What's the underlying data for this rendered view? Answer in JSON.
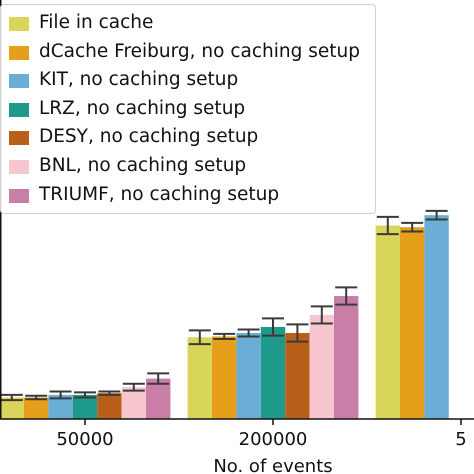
{
  "chart_data": {
    "type": "bar",
    "xlabel": "No. of events",
    "categories": [
      "50000",
      "200000",
      "5"
    ],
    "series": [
      {
        "name": "File in cache",
        "color": "#d9d45a",
        "values": [
          2.5,
          9.5,
          22.5
        ],
        "errors": [
          0.3,
          0.8,
          1.0
        ]
      },
      {
        "name": "dCache Freiburg, no caching setup",
        "color": "#e69f1a",
        "values": [
          2.5,
          9.6,
          22.3
        ],
        "errors": [
          0.2,
          0.3,
          0.5
        ]
      },
      {
        "name": "KIT, no caching setup",
        "color": "#6aaed6",
        "values": [
          2.8,
          10.0,
          23.7
        ],
        "errors": [
          0.4,
          0.4,
          0.5
        ]
      },
      {
        "name": "LRZ, no caching setup",
        "color": "#1f9a8a",
        "values": [
          2.8,
          10.7,
          null
        ],
        "errors": [
          0.3,
          1.0,
          null
        ]
      },
      {
        "name": "DESY, no caching setup",
        "color": "#b85f1a",
        "values": [
          3.0,
          10.0,
          null
        ],
        "errors": [
          0.2,
          1.0,
          null
        ]
      },
      {
        "name": "BNL, no caching setup",
        "color": "#f7c6cf",
        "values": [
          3.7,
          12.1,
          null
        ],
        "errors": [
          0.4,
          1.0,
          null
        ]
      },
      {
        "name": "TRIUMF, no caching setup",
        "color": "#c97ea8",
        "values": [
          4.7,
          14.3,
          null
        ],
        "errors": [
          0.6,
          1.0,
          null
        ]
      }
    ],
    "ylim": [
      0,
      30
    ],
    "grid": false,
    "legend_position": "top-left"
  }
}
